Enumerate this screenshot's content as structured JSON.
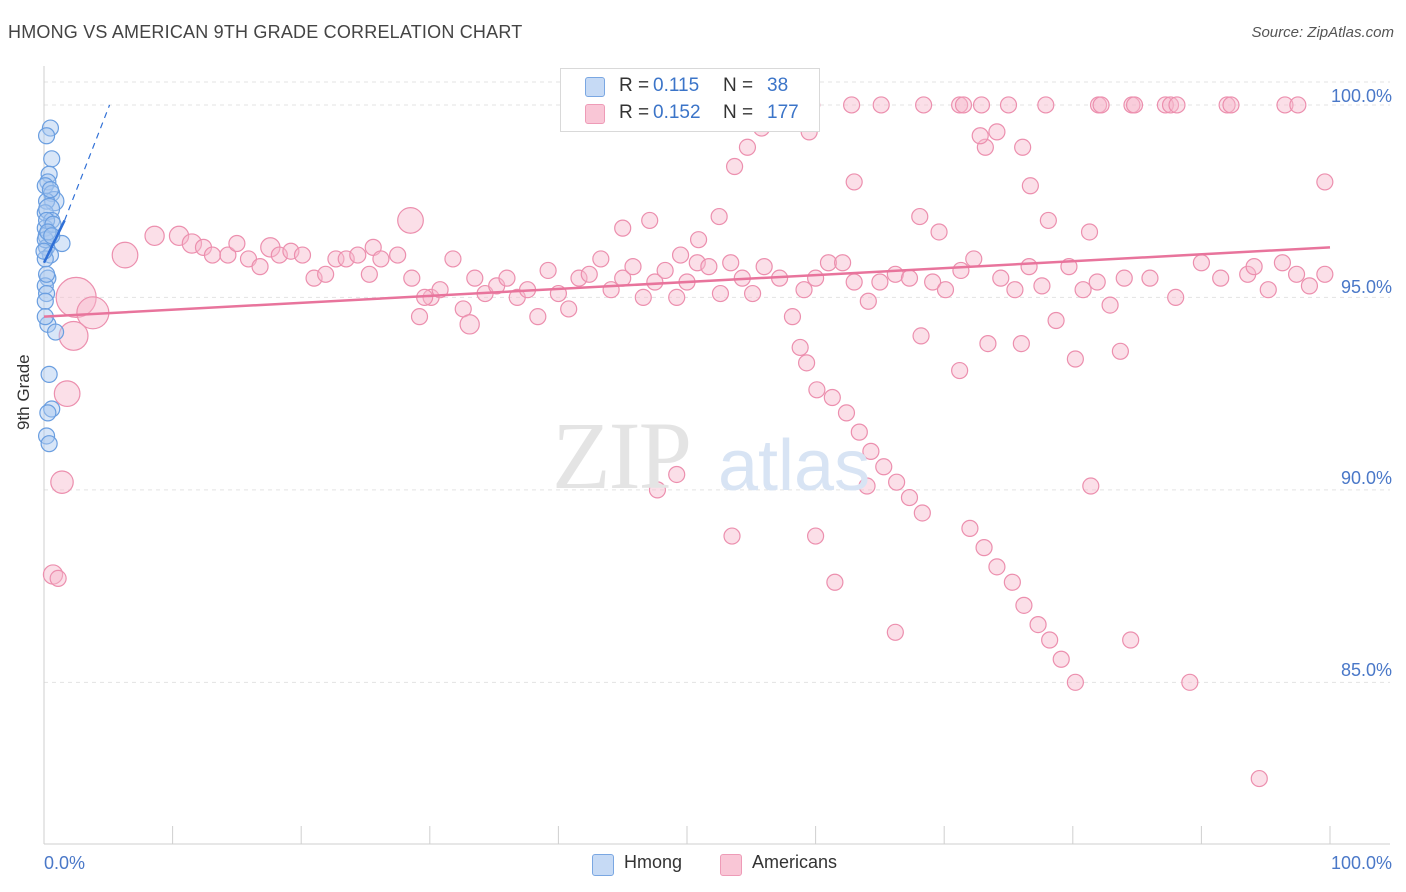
{
  "title": "HMONG VS AMERICAN 9TH GRADE CORRELATION CHART",
  "source": "Source: ZipAtlas.com",
  "watermark": {
    "zip": "ZIP",
    "atlas": "atlas"
  },
  "colors": {
    "hmong_fill": "#a9c8f0",
    "hmong_stroke": "#6a9ee0",
    "hmong_line": "#2f6fd6",
    "american_fill": "#f7b8cb",
    "american_stroke": "#ec8fae",
    "american_line": "#e8749c",
    "tick_label": "#4a78c8",
    "grid": "#e3e3e3"
  },
  "legend": {
    "rows": [
      {
        "r_label": "R =",
        "r_value": "0.115",
        "n_label": "N =",
        "n_value": "38"
      },
      {
        "r_label": "R =",
        "r_value": "0.152",
        "n_label": "N =",
        "n_value": "177"
      }
    ]
  },
  "bottom_legend": {
    "hmong": "Hmong",
    "americans": "Americans"
  },
  "chart_data": {
    "type": "scatter",
    "title": "HMONG VS AMERICAN 9TH GRADE CORRELATION CHART",
    "xlabel": "",
    "ylabel": "9th Grade",
    "xlim": [
      0,
      100
    ],
    "ylim": [
      80.8,
      100.7
    ],
    "x_tick_labels": [
      "0.0%",
      "100.0%"
    ],
    "y_ticks": [
      85,
      90,
      95,
      100
    ],
    "y_tick_labels": [
      "85.0%",
      "90.0%",
      "95.0%",
      "100.0%"
    ],
    "grid": true,
    "legend_position": "top-center",
    "series": [
      {
        "name": "Hmong",
        "R": 0.115,
        "N": 38,
        "trend": {
          "x0": 0,
          "y0": 95.9,
          "x1": 1.6,
          "y1": 97.0
        },
        "trend_dashed": {
          "x0": 1.6,
          "y0": 97.0,
          "x1": 5.1,
          "y1": 100.0
        },
        "points": [
          [
            0.5,
            99.4,
            1
          ],
          [
            0.2,
            99.2,
            1
          ],
          [
            0.6,
            98.6,
            1
          ],
          [
            0.4,
            98.2,
            1
          ],
          [
            0.3,
            98.0,
            1
          ],
          [
            0.1,
            97.9,
            1
          ],
          [
            0.6,
            97.7,
            1
          ],
          [
            0.8,
            97.5,
            1.2
          ],
          [
            0.2,
            97.5,
            1
          ],
          [
            0.1,
            97.2,
            1
          ],
          [
            0.4,
            97.3,
            1.3
          ],
          [
            0.6,
            97.0,
            1
          ],
          [
            0.1,
            96.8,
            1
          ],
          [
            0.3,
            96.6,
            1.2
          ],
          [
            1.4,
            96.4,
            1
          ],
          [
            0.2,
            96.3,
            1
          ],
          [
            0.5,
            96.1,
            1
          ],
          [
            0.1,
            96.0,
            1
          ],
          [
            0.3,
            95.5,
            1
          ],
          [
            0.1,
            95.3,
            1
          ],
          [
            0.2,
            95.1,
            1
          ],
          [
            0.1,
            94.9,
            1
          ],
          [
            0.3,
            94.3,
            1
          ],
          [
            0.9,
            94.1,
            1
          ],
          [
            0.4,
            93.0,
            1
          ],
          [
            0.6,
            92.1,
            1
          ],
          [
            0.3,
            92.0,
            1
          ],
          [
            0.2,
            91.4,
            1
          ],
          [
            0.4,
            91.2,
            1
          ],
          [
            0.1,
            96.5,
            1
          ],
          [
            0.2,
            97.0,
            1
          ],
          [
            0.7,
            96.9,
            1
          ],
          [
            0.0,
            96.2,
            1
          ],
          [
            0.5,
            97.8,
            1
          ],
          [
            0.3,
            96.7,
            1
          ],
          [
            0.2,
            95.6,
            1
          ],
          [
            0.6,
            96.6,
            1
          ],
          [
            0.1,
            94.5,
            1
          ]
        ]
      },
      {
        "name": "Americans",
        "R": 0.152,
        "N": 177,
        "trend": {
          "x0": 0,
          "y0": 94.5,
          "x1": 100,
          "y1": 96.3
        },
        "points": [
          [
            59.7,
            100.0,
            1
          ],
          [
            62.8,
            100.0,
            1
          ],
          [
            65.1,
            100.0,
            1
          ],
          [
            68.4,
            100.0,
            1
          ],
          [
            71.2,
            100.0,
            1
          ],
          [
            71.5,
            100.0,
            1
          ],
          [
            72.9,
            100.0,
            1
          ],
          [
            75.0,
            100.0,
            1
          ],
          [
            77.9,
            100.0,
            1
          ],
          [
            82.0,
            100.0,
            1
          ],
          [
            82.2,
            100.0,
            1
          ],
          [
            84.6,
            100.0,
            1
          ],
          [
            84.8,
            100.0,
            1
          ],
          [
            87.2,
            100.0,
            1
          ],
          [
            87.6,
            100.0,
            1
          ],
          [
            88.1,
            100.0,
            1
          ],
          [
            92.0,
            100.0,
            1
          ],
          [
            92.3,
            100.0,
            1
          ],
          [
            96.5,
            100.0,
            1
          ],
          [
            97.5,
            100.0,
            1
          ],
          [
            59.5,
            99.3,
            1
          ],
          [
            55.8,
            99.4,
            1
          ],
          [
            74.1,
            99.3,
            1
          ],
          [
            73.2,
            98.9,
            1
          ],
          [
            76.1,
            98.9,
            1
          ],
          [
            72.8,
            99.2,
            1
          ],
          [
            53.7,
            98.4,
            1
          ],
          [
            54.7,
            98.9,
            1
          ],
          [
            63.0,
            98.0,
            1
          ],
          [
            76.7,
            97.9,
            1
          ],
          [
            99.6,
            98.0,
            1
          ],
          [
            52.5,
            97.1,
            1
          ],
          [
            68.1,
            97.1,
            1
          ],
          [
            78.1,
            97.0,
            1
          ],
          [
            69.6,
            96.7,
            1
          ],
          [
            81.3,
            96.7,
            1
          ],
          [
            45.0,
            96.8,
            1
          ],
          [
            50.9,
            96.5,
            1
          ],
          [
            25.6,
            96.3,
            1
          ],
          [
            6.3,
            96.1,
            1.6
          ],
          [
            8.6,
            96.6,
            1.2
          ],
          [
            10.5,
            96.6,
            1.2
          ],
          [
            11.5,
            96.4,
            1.2
          ],
          [
            12.4,
            96.3,
            1
          ],
          [
            13.1,
            96.1,
            1
          ],
          [
            14.3,
            96.1,
            1
          ],
          [
            15.0,
            96.4,
            1
          ],
          [
            15.9,
            96.0,
            1
          ],
          [
            16.8,
            95.8,
            1
          ],
          [
            17.6,
            96.3,
            1.2
          ],
          [
            18.3,
            96.1,
            1
          ],
          [
            19.2,
            96.2,
            1
          ],
          [
            20.1,
            96.1,
            1
          ],
          [
            21.0,
            95.5,
            1
          ],
          [
            21.9,
            95.6,
            1
          ],
          [
            22.7,
            96.0,
            1
          ],
          [
            23.5,
            96.0,
            1
          ],
          [
            24.4,
            96.1,
            1
          ],
          [
            25.3,
            95.6,
            1
          ],
          [
            26.2,
            96.0,
            1
          ],
          [
            27.5,
            96.1,
            1
          ],
          [
            28.6,
            95.5,
            1
          ],
          [
            29.2,
            94.5,
            1
          ],
          [
            30.1,
            95.0,
            1
          ],
          [
            30.8,
            95.2,
            1
          ],
          [
            31.8,
            96.0,
            1
          ],
          [
            32.6,
            94.7,
            1
          ],
          [
            33.5,
            95.5,
            1
          ],
          [
            34.3,
            95.1,
            1
          ],
          [
            35.2,
            95.3,
            1
          ],
          [
            36.0,
            95.5,
            1
          ],
          [
            36.8,
            95.0,
            1
          ],
          [
            37.6,
            95.2,
            1
          ],
          [
            38.4,
            94.5,
            1
          ],
          [
            39.2,
            95.7,
            1
          ],
          [
            40.0,
            95.1,
            1
          ],
          [
            40.8,
            94.7,
            1
          ],
          [
            41.6,
            95.5,
            1
          ],
          [
            42.4,
            95.6,
            1
          ],
          [
            43.3,
            96.0,
            1
          ],
          [
            44.1,
            95.2,
            1
          ],
          [
            45.0,
            95.5,
            1
          ],
          [
            45.8,
            95.8,
            1
          ],
          [
            46.6,
            95.0,
            1
          ],
          [
            47.5,
            95.4,
            1
          ],
          [
            48.3,
            95.7,
            1
          ],
          [
            49.2,
            95.0,
            1
          ],
          [
            50.0,
            95.4,
            1
          ],
          [
            50.8,
            95.9,
            1
          ],
          [
            51.7,
            95.8,
            1
          ],
          [
            52.6,
            95.1,
            1
          ],
          [
            53.4,
            95.9,
            1
          ],
          [
            54.3,
            95.5,
            1
          ],
          [
            55.1,
            95.1,
            1
          ],
          [
            56.0,
            95.8,
            1
          ],
          [
            57.2,
            95.5,
            1
          ],
          [
            58.2,
            94.5,
            1
          ],
          [
            59.1,
            95.2,
            1
          ],
          [
            60.0,
            95.5,
            1
          ],
          [
            61.0,
            95.9,
            1
          ],
          [
            62.1,
            95.9,
            1
          ],
          [
            63.0,
            95.4,
            1
          ],
          [
            64.1,
            94.9,
            1
          ],
          [
            65.0,
            95.4,
            1
          ],
          [
            66.2,
            95.6,
            1
          ],
          [
            67.3,
            95.5,
            1
          ],
          [
            68.2,
            94.0,
            1
          ],
          [
            69.1,
            95.4,
            1
          ],
          [
            70.1,
            95.2,
            1
          ],
          [
            71.3,
            95.7,
            1
          ],
          [
            72.3,
            96.0,
            1
          ],
          [
            73.4,
            93.8,
            1
          ],
          [
            74.4,
            95.5,
            1
          ],
          [
            75.5,
            95.2,
            1
          ],
          [
            76.6,
            95.8,
            1
          ],
          [
            77.6,
            95.3,
            1
          ],
          [
            78.7,
            94.4,
            1
          ],
          [
            79.7,
            95.8,
            1
          ],
          [
            80.8,
            95.2,
            1
          ],
          [
            81.9,
            95.4,
            1
          ],
          [
            82.9,
            94.8,
            1
          ],
          [
            84.0,
            95.5,
            1
          ],
          [
            86.0,
            95.5,
            1
          ],
          [
            88.0,
            95.0,
            1
          ],
          [
            90.0,
            95.9,
            1
          ],
          [
            91.5,
            95.5,
            1
          ],
          [
            93.6,
            95.6,
            1
          ],
          [
            94.1,
            95.8,
            1
          ],
          [
            95.2,
            95.2,
            1
          ],
          [
            96.3,
            95.9,
            1
          ],
          [
            97.4,
            95.6,
            1
          ],
          [
            98.4,
            95.3,
            1
          ],
          [
            99.6,
            95.6,
            1
          ],
          [
            28.5,
            97.0,
            1.6
          ],
          [
            29.6,
            95.0,
            1
          ],
          [
            33.1,
            94.3,
            1.2
          ],
          [
            2.5,
            95.0,
            2.5
          ],
          [
            3.8,
            94.6,
            2.0
          ],
          [
            2.3,
            94.0,
            1.8
          ],
          [
            1.8,
            92.5,
            1.6
          ],
          [
            1.4,
            90.2,
            1.4
          ],
          [
            0.7,
            87.8,
            1.2
          ],
          [
            1.1,
            87.7,
            1
          ],
          [
            47.1,
            97.0,
            1
          ],
          [
            49.5,
            96.1,
            1
          ],
          [
            58.8,
            93.7,
            1
          ],
          [
            59.3,
            93.3,
            1
          ],
          [
            60.1,
            92.6,
            1
          ],
          [
            61.3,
            92.4,
            1
          ],
          [
            62.4,
            92.0,
            1
          ],
          [
            63.4,
            91.5,
            1
          ],
          [
            64.3,
            91.0,
            1
          ],
          [
            65.3,
            90.6,
            1
          ],
          [
            66.3,
            90.2,
            1
          ],
          [
            67.3,
            89.8,
            1
          ],
          [
            68.3,
            89.4,
            1
          ],
          [
            72.0,
            89.0,
            1
          ],
          [
            73.1,
            88.5,
            1
          ],
          [
            74.1,
            88.0,
            1
          ],
          [
            75.3,
            87.6,
            1
          ],
          [
            76.2,
            87.0,
            1
          ],
          [
            77.3,
            86.5,
            1
          ],
          [
            78.2,
            86.1,
            1
          ],
          [
            79.1,
            85.6,
            1
          ],
          [
            80.2,
            85.0,
            1
          ],
          [
            94.5,
            82.5,
            1
          ],
          [
            84.5,
            86.1,
            1
          ],
          [
            89.1,
            85.0,
            1
          ],
          [
            81.4,
            90.1,
            1
          ],
          [
            66.2,
            86.3,
            1
          ],
          [
            61.5,
            87.6,
            1
          ],
          [
            53.5,
            88.8,
            1
          ],
          [
            47.7,
            90.0,
            1
          ],
          [
            49.2,
            90.4,
            1
          ],
          [
            60.0,
            88.8,
            1
          ],
          [
            64.0,
            90.1,
            1
          ],
          [
            71.2,
            93.1,
            1
          ],
          [
            76.0,
            93.8,
            1
          ],
          [
            80.2,
            93.4,
            1
          ],
          [
            83.7,
            93.6,
            1
          ]
        ]
      }
    ]
  }
}
